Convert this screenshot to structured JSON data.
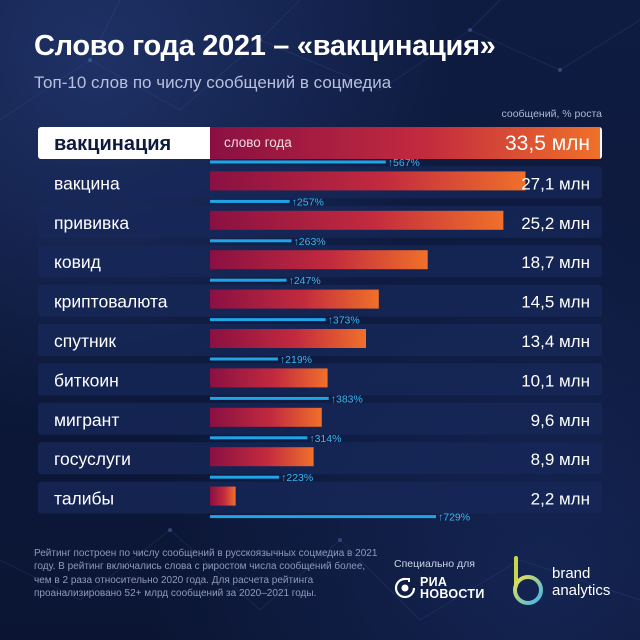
{
  "header": {
    "title": "Слово года 2021 – «вакцинация»",
    "subtitle": "Топ-10 слов по числу сообщений в соцмедиа",
    "unit_note": "сообщений, % роста"
  },
  "highlight_label": "слово года",
  "chart_data": {
    "type": "bar",
    "title": "Слово года 2021 – «вакцинация»",
    "subtitle": "Топ-10 слов по числу сообщений в соцмедиа",
    "categories": [
      "вакцинация",
      "вакцина",
      "прививка",
      "ковид",
      "криптовалюта",
      "спутник",
      "биткоин",
      "мигрант",
      "госуслуги",
      "талибы"
    ],
    "series": [
      {
        "name": "сообщений",
        "values": [
          33.5,
          27.1,
          25.2,
          18.7,
          14.5,
          13.4,
          10.1,
          9.6,
          8.9,
          2.2
        ],
        "labels": [
          "33,5 млн",
          "27,1 млн",
          "25,2 млн",
          "18,7 млн",
          "14,5 млн",
          "13,4 млн",
          "10,1 млн",
          "9,6 млн",
          "8,9 млн",
          "2,2 млн"
        ]
      },
      {
        "name": "% роста",
        "values": [
          567,
          257,
          263,
          247,
          373,
          219,
          383,
          314,
          223,
          729
        ],
        "labels": [
          "↑567%",
          "↑257%",
          "↑263%",
          "↑247%",
          "↑373%",
          "↑219%",
          "↑383%",
          "↑314%",
          "↑223%",
          "↑729%"
        ]
      }
    ],
    "colors": {
      "bar_start": "#8a1042",
      "bar_mid": "#c22a3e",
      "bar_end": "#f0702a",
      "growth_line": "#1fa4e8",
      "growth_text": "#3bb6f2",
      "row_bg": "#17285a",
      "row_bg_highlight": "#ffffff",
      "label_highlight": "#0e1a3d"
    }
  },
  "footer": {
    "footnote": "Рейтинг построен по числу сообщений в русскоязычных соцмедиа в 2021 году. В рейтинг включались слова с риростом числа сообщений более, чем в 2 раза относительно 2020 года. Для расчета рейтинга проанализировано 52+ млрд сообщений за 2020–2021 годы.",
    "partner_label": "Специально для",
    "ria_line1": "РИА",
    "ria_line2": "НОВОСТИ",
    "ba_line1": "brand",
    "ba_line2": "analytics"
  }
}
